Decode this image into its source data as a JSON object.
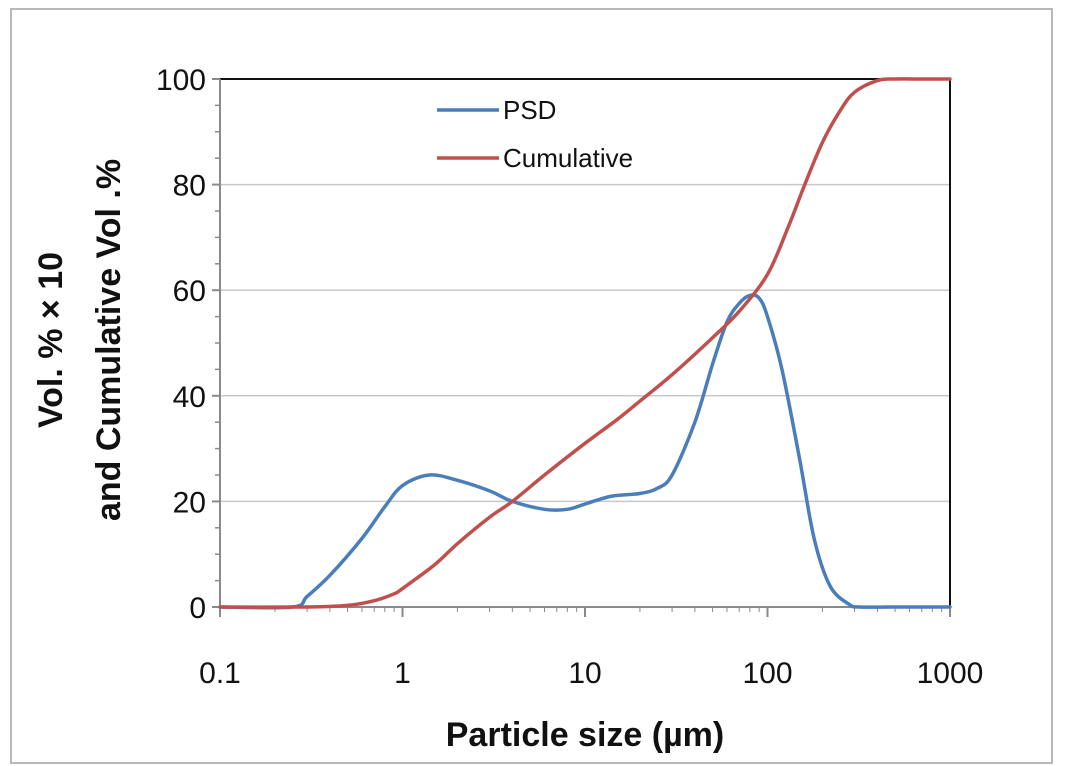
{
  "chart_data": {
    "type": "line",
    "xscale": "log",
    "xlim": [
      0.1,
      1000
    ],
    "ylim": [
      0,
      100
    ],
    "xlabel": "Particle size (µm)",
    "ylabel_line1": "Vol. % × 10",
    "ylabel_line2": "and Cumulative Vol .%",
    "x_ticks": [
      0.1,
      1,
      10,
      100,
      1000
    ],
    "x_tick_labels": [
      "0.1",
      "1",
      "10",
      "100",
      "1000"
    ],
    "y_ticks": [
      0,
      20,
      40,
      60,
      80,
      100
    ],
    "y_tick_labels": [
      "0",
      "20",
      "40",
      "60",
      "80",
      "100"
    ],
    "grid": "horizontal",
    "legend_position": "top-left",
    "series": [
      {
        "name": "PSD",
        "color": "#4a7ebb",
        "x": [
          0.1,
          0.25,
          0.3,
          0.4,
          0.6,
          0.8,
          1.0,
          1.4,
          2,
          3,
          4,
          6,
          8,
          10,
          14,
          20,
          25,
          30,
          40,
          50,
          60,
          70,
          80,
          90,
          100,
          120,
          150,
          180,
          220,
          280,
          320,
          500,
          1000
        ],
        "y": [
          0,
          0,
          2,
          6,
          13,
          19,
          23,
          25,
          24,
          22,
          20,
          18.5,
          18.5,
          19.5,
          21,
          21.5,
          22.5,
          25,
          35,
          46,
          54,
          57.5,
          59,
          58.5,
          55,
          45,
          28,
          13,
          4,
          0.5,
          0,
          0,
          0
        ]
      },
      {
        "name": "Cumulative",
        "color": "#c0504d",
        "x": [
          0.1,
          0.3,
          0.5,
          0.7,
          0.9,
          1,
          1.5,
          2,
          3,
          4,
          6,
          10,
          15,
          20,
          30,
          50,
          70,
          100,
          130,
          160,
          200,
          250,
          300,
          400,
          500,
          700,
          1000
        ],
        "y": [
          0,
          0,
          0.3,
          1.2,
          2.5,
          3.5,
          8,
          12,
          17,
          20,
          25,
          31,
          35.5,
          39,
          44,
          51,
          56,
          63,
          72,
          80,
          88,
          94,
          97.5,
          99.7,
          100,
          100,
          100
        ]
      }
    ]
  }
}
